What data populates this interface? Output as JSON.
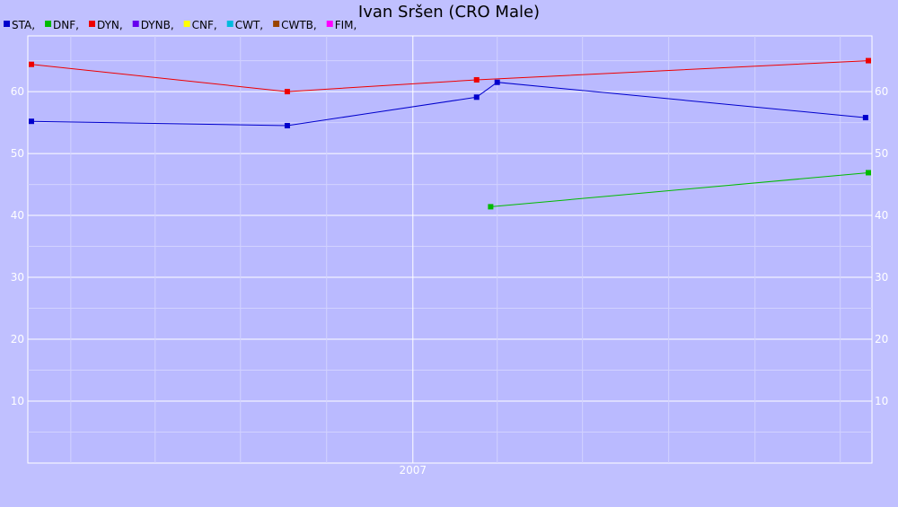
{
  "chart_data": {
    "type": "line",
    "title": "Ivan Sršen (CRO Male)",
    "xlabel": "",
    "ylabel": "",
    "x_ticks": [
      {
        "label": "2007",
        "date": "2007-01-01"
      }
    ],
    "xlim": [
      "2005-11-20",
      "2008-05-01"
    ],
    "y_ticks": [
      10,
      20,
      30,
      40,
      50,
      60
    ],
    "ylim": [
      0,
      69
    ],
    "grid": true,
    "legend_position": "top-left",
    "legend": [
      {
        "label": "STA,",
        "color": "#0000cc"
      },
      {
        "label": "DNF,",
        "color": "#00bb00"
      },
      {
        "label": "DYN,",
        "color": "#ee0000"
      },
      {
        "label": "DYNB,",
        "color": "#6600ee"
      },
      {
        "label": "CNF,",
        "color": "#ffff00"
      },
      {
        "label": "CWT,",
        "color": "#00bbdd"
      },
      {
        "label": "CWTB,",
        "color": "#994400"
      },
      {
        "label": "FIM,",
        "color": "#ff00ff"
      }
    ],
    "series": [
      {
        "name": "STA",
        "color": "#0000cc",
        "points": [
          {
            "x": "2005-11-20",
            "y": 55.2
          },
          {
            "x": "2006-08-20",
            "y": 54.5
          },
          {
            "x": "2007-03-10",
            "y": 59.1
          },
          {
            "x": "2007-04-01",
            "y": 61.5
          },
          {
            "x": "2008-04-28",
            "y": 55.8
          }
        ]
      },
      {
        "name": "DNF",
        "color": "#00bb00",
        "points": [
          {
            "x": "2007-03-25",
            "y": 41.4
          },
          {
            "x": "2008-05-01",
            "y": 46.9
          }
        ]
      },
      {
        "name": "DYN",
        "color": "#ee0000",
        "points": [
          {
            "x": "2005-11-20",
            "y": 64.4
          },
          {
            "x": "2006-08-20",
            "y": 60.0
          },
          {
            "x": "2007-03-10",
            "y": 61.9
          },
          {
            "x": "2008-05-01",
            "y": 65.0
          }
        ]
      }
    ]
  }
}
